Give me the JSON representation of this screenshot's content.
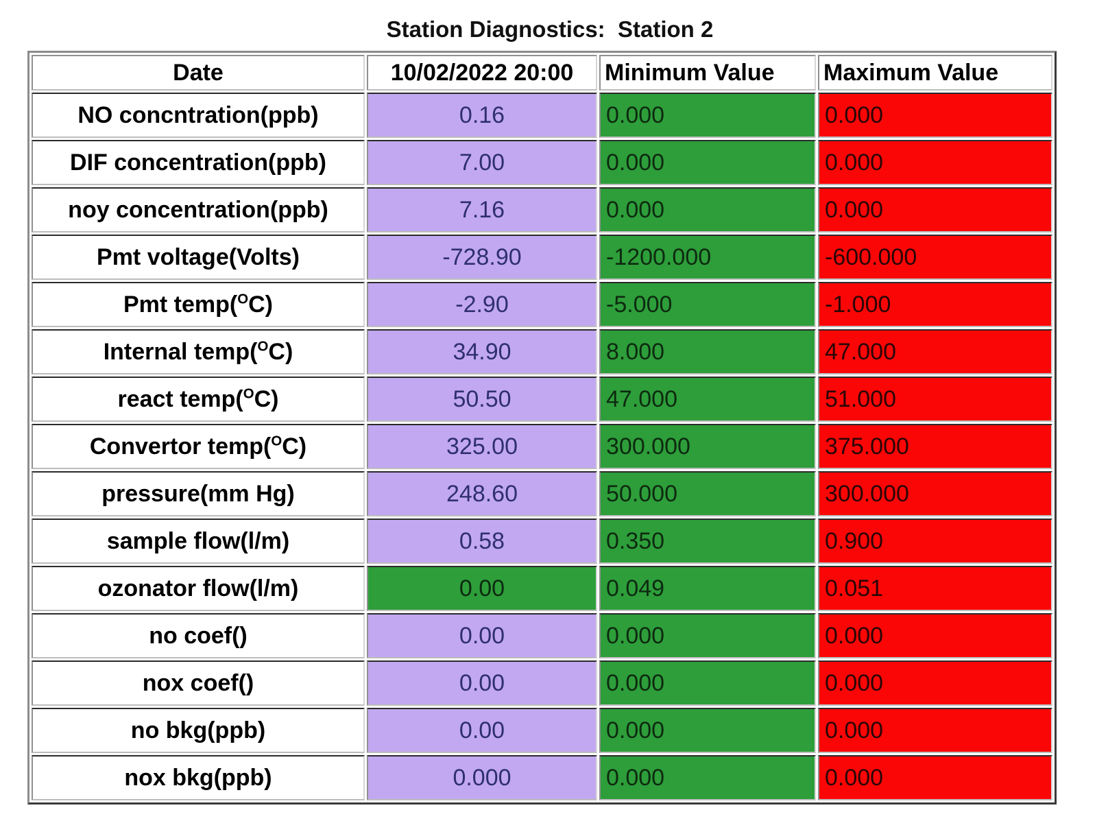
{
  "title": "Station Diagnostics:  Station 2",
  "colors": {
    "value_bg": "#c2a8f0",
    "value_text": "#2f2f72",
    "min_bg": "#2d9e3a",
    "min_text": "#0e2a10",
    "max_bg": "#fb0606",
    "max_text": "#2a0606",
    "label_bg": "#ffffff",
    "label_text": "#000000"
  },
  "header": {
    "date": "Date",
    "datetime": "10/02/2022 20:00",
    "min": "Minimum Value",
    "max": "Maximum Value"
  },
  "rows": [
    {
      "label": {
        "pre": "NO concntration(ppb)",
        "sup": "",
        "post": ""
      },
      "value": "0.16",
      "min": "0.000",
      "max": "0.000",
      "value_bg": "#c2a8f0",
      "value_color": "#2f2f72"
    },
    {
      "label": {
        "pre": "DIF concentration(ppb)",
        "sup": "",
        "post": ""
      },
      "value": "7.00",
      "min": "0.000",
      "max": "0.000",
      "value_bg": "#c2a8f0",
      "value_color": "#2f2f72"
    },
    {
      "label": {
        "pre": "noy concentration(ppb)",
        "sup": "",
        "post": ""
      },
      "value": "7.16",
      "min": "0.000",
      "max": "0.000",
      "value_bg": "#c2a8f0",
      "value_color": "#2f2f72"
    },
    {
      "label": {
        "pre": "Pmt voltage(Volts)",
        "sup": "",
        "post": ""
      },
      "value": "-728.90",
      "min": "-1200.000",
      "max": "-600.000",
      "value_bg": "#c2a8f0",
      "value_color": "#2f2f72"
    },
    {
      "label": {
        "pre": "Pmt temp(",
        "sup": "O",
        "post": "C)"
      },
      "value": "-2.90",
      "min": "-5.000",
      "max": "-1.000",
      "value_bg": "#c2a8f0",
      "value_color": "#2f2f72"
    },
    {
      "label": {
        "pre": "Internal temp(",
        "sup": "O",
        "post": "C)"
      },
      "value": "34.90",
      "min": "8.000",
      "max": "47.000",
      "value_bg": "#c2a8f0",
      "value_color": "#2f2f72"
    },
    {
      "label": {
        "pre": "react temp(",
        "sup": "O",
        "post": "C)"
      },
      "value": "50.50",
      "min": "47.000",
      "max": "51.000",
      "value_bg": "#c2a8f0",
      "value_color": "#2f2f72"
    },
    {
      "label": {
        "pre": "Convertor temp(",
        "sup": "O",
        "post": "C)"
      },
      "value": "325.00",
      "min": "300.000",
      "max": "375.000",
      "value_bg": "#c2a8f0",
      "value_color": "#2f2f72"
    },
    {
      "label": {
        "pre": "pressure(mm Hg)",
        "sup": "",
        "post": ""
      },
      "value": "248.60",
      "min": "50.000",
      "max": "300.000",
      "value_bg": "#c2a8f0",
      "value_color": "#2f2f72"
    },
    {
      "label": {
        "pre": "sample flow(l/m)",
        "sup": "",
        "post": ""
      },
      "value": "0.58",
      "min": "0.350",
      "max": "0.900",
      "value_bg": "#c2a8f0",
      "value_color": "#2f2f72"
    },
    {
      "label": {
        "pre": "ozonator flow(l/m)",
        "sup": "",
        "post": ""
      },
      "value": "0.00",
      "min": "0.049",
      "max": "0.051",
      "value_bg": "#2d9e3a",
      "value_color": "#0e2a10"
    },
    {
      "label": {
        "pre": "no coef()",
        "sup": "",
        "post": ""
      },
      "value": "0.00",
      "min": "0.000",
      "max": "0.000",
      "value_bg": "#c2a8f0",
      "value_color": "#2f2f72"
    },
    {
      "label": {
        "pre": "nox coef()",
        "sup": "",
        "post": ""
      },
      "value": "0.00",
      "min": "0.000",
      "max": "0.000",
      "value_bg": "#c2a8f0",
      "value_color": "#2f2f72"
    },
    {
      "label": {
        "pre": "no bkg(ppb)",
        "sup": "",
        "post": ""
      },
      "value": "0.00",
      "min": "0.000",
      "max": "0.000",
      "value_bg": "#c2a8f0",
      "value_color": "#2f2f72"
    },
    {
      "label": {
        "pre": "nox bkg(ppb)",
        "sup": "",
        "post": ""
      },
      "value": "0.000",
      "min": "0.000",
      "max": "0.000",
      "value_bg": "#c2a8f0",
      "value_color": "#2f2f72"
    }
  ]
}
